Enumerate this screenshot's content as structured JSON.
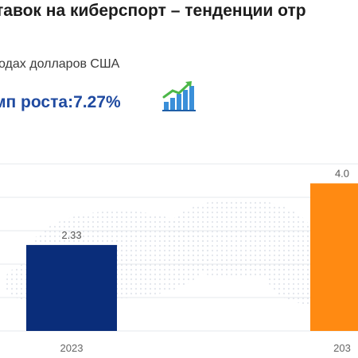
{
  "header": {
    "title": "тавок на киберспорт – тенденции отр",
    "subtitle": "одах долларов США",
    "cagr_text": "мп роста:7.27%"
  },
  "icons": {
    "growth": "bar-chart-growth-arrow-icon"
  },
  "colors": {
    "bar_2023": "#0a2d7a",
    "bar_end": "#ff8a12",
    "title": "#1c1c1c",
    "cagr": "#1f4aa0"
  },
  "chart_data": {
    "type": "bar",
    "categories": [
      "2023",
      "203"
    ],
    "values": [
      2.33,
      4.0
    ],
    "data_labels": [
      "2.33",
      "4.0"
    ],
    "title": "",
    "xlabel": "",
    "ylabel": "",
    "ylim": [
      0,
      4.7
    ],
    "grid": true,
    "legend": "none"
  }
}
